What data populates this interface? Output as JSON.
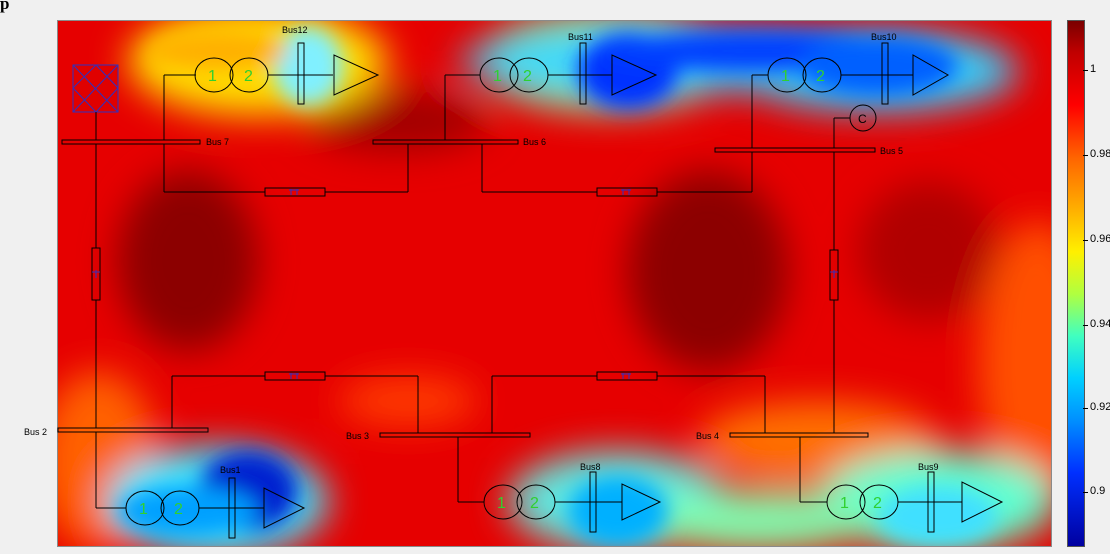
{
  "title_fragment": "p",
  "buses": {
    "bus1": "Bus1",
    "bus2": "Bus 2",
    "bus3": "Bus 3",
    "bus4": "Bus 4",
    "bus5": "Bus 5",
    "bus6": "Bus 6",
    "bus7": "Bus 7",
    "bus8": "Bus8",
    "bus9": "Bus9",
    "bus10": "Bus10",
    "bus11": "Bus11",
    "bus12": "Bus12"
  },
  "transformer_labels": {
    "primary": "1",
    "secondary": "2"
  },
  "compensator_label": "C",
  "colorbar": {
    "tick_labels": [
      "1",
      "0.98",
      "0.96",
      "0.94",
      "0.92",
      "0.9"
    ],
    "colormap": "jet",
    "high_color": "#7a0000",
    "low_color": "#0000a0"
  }
}
